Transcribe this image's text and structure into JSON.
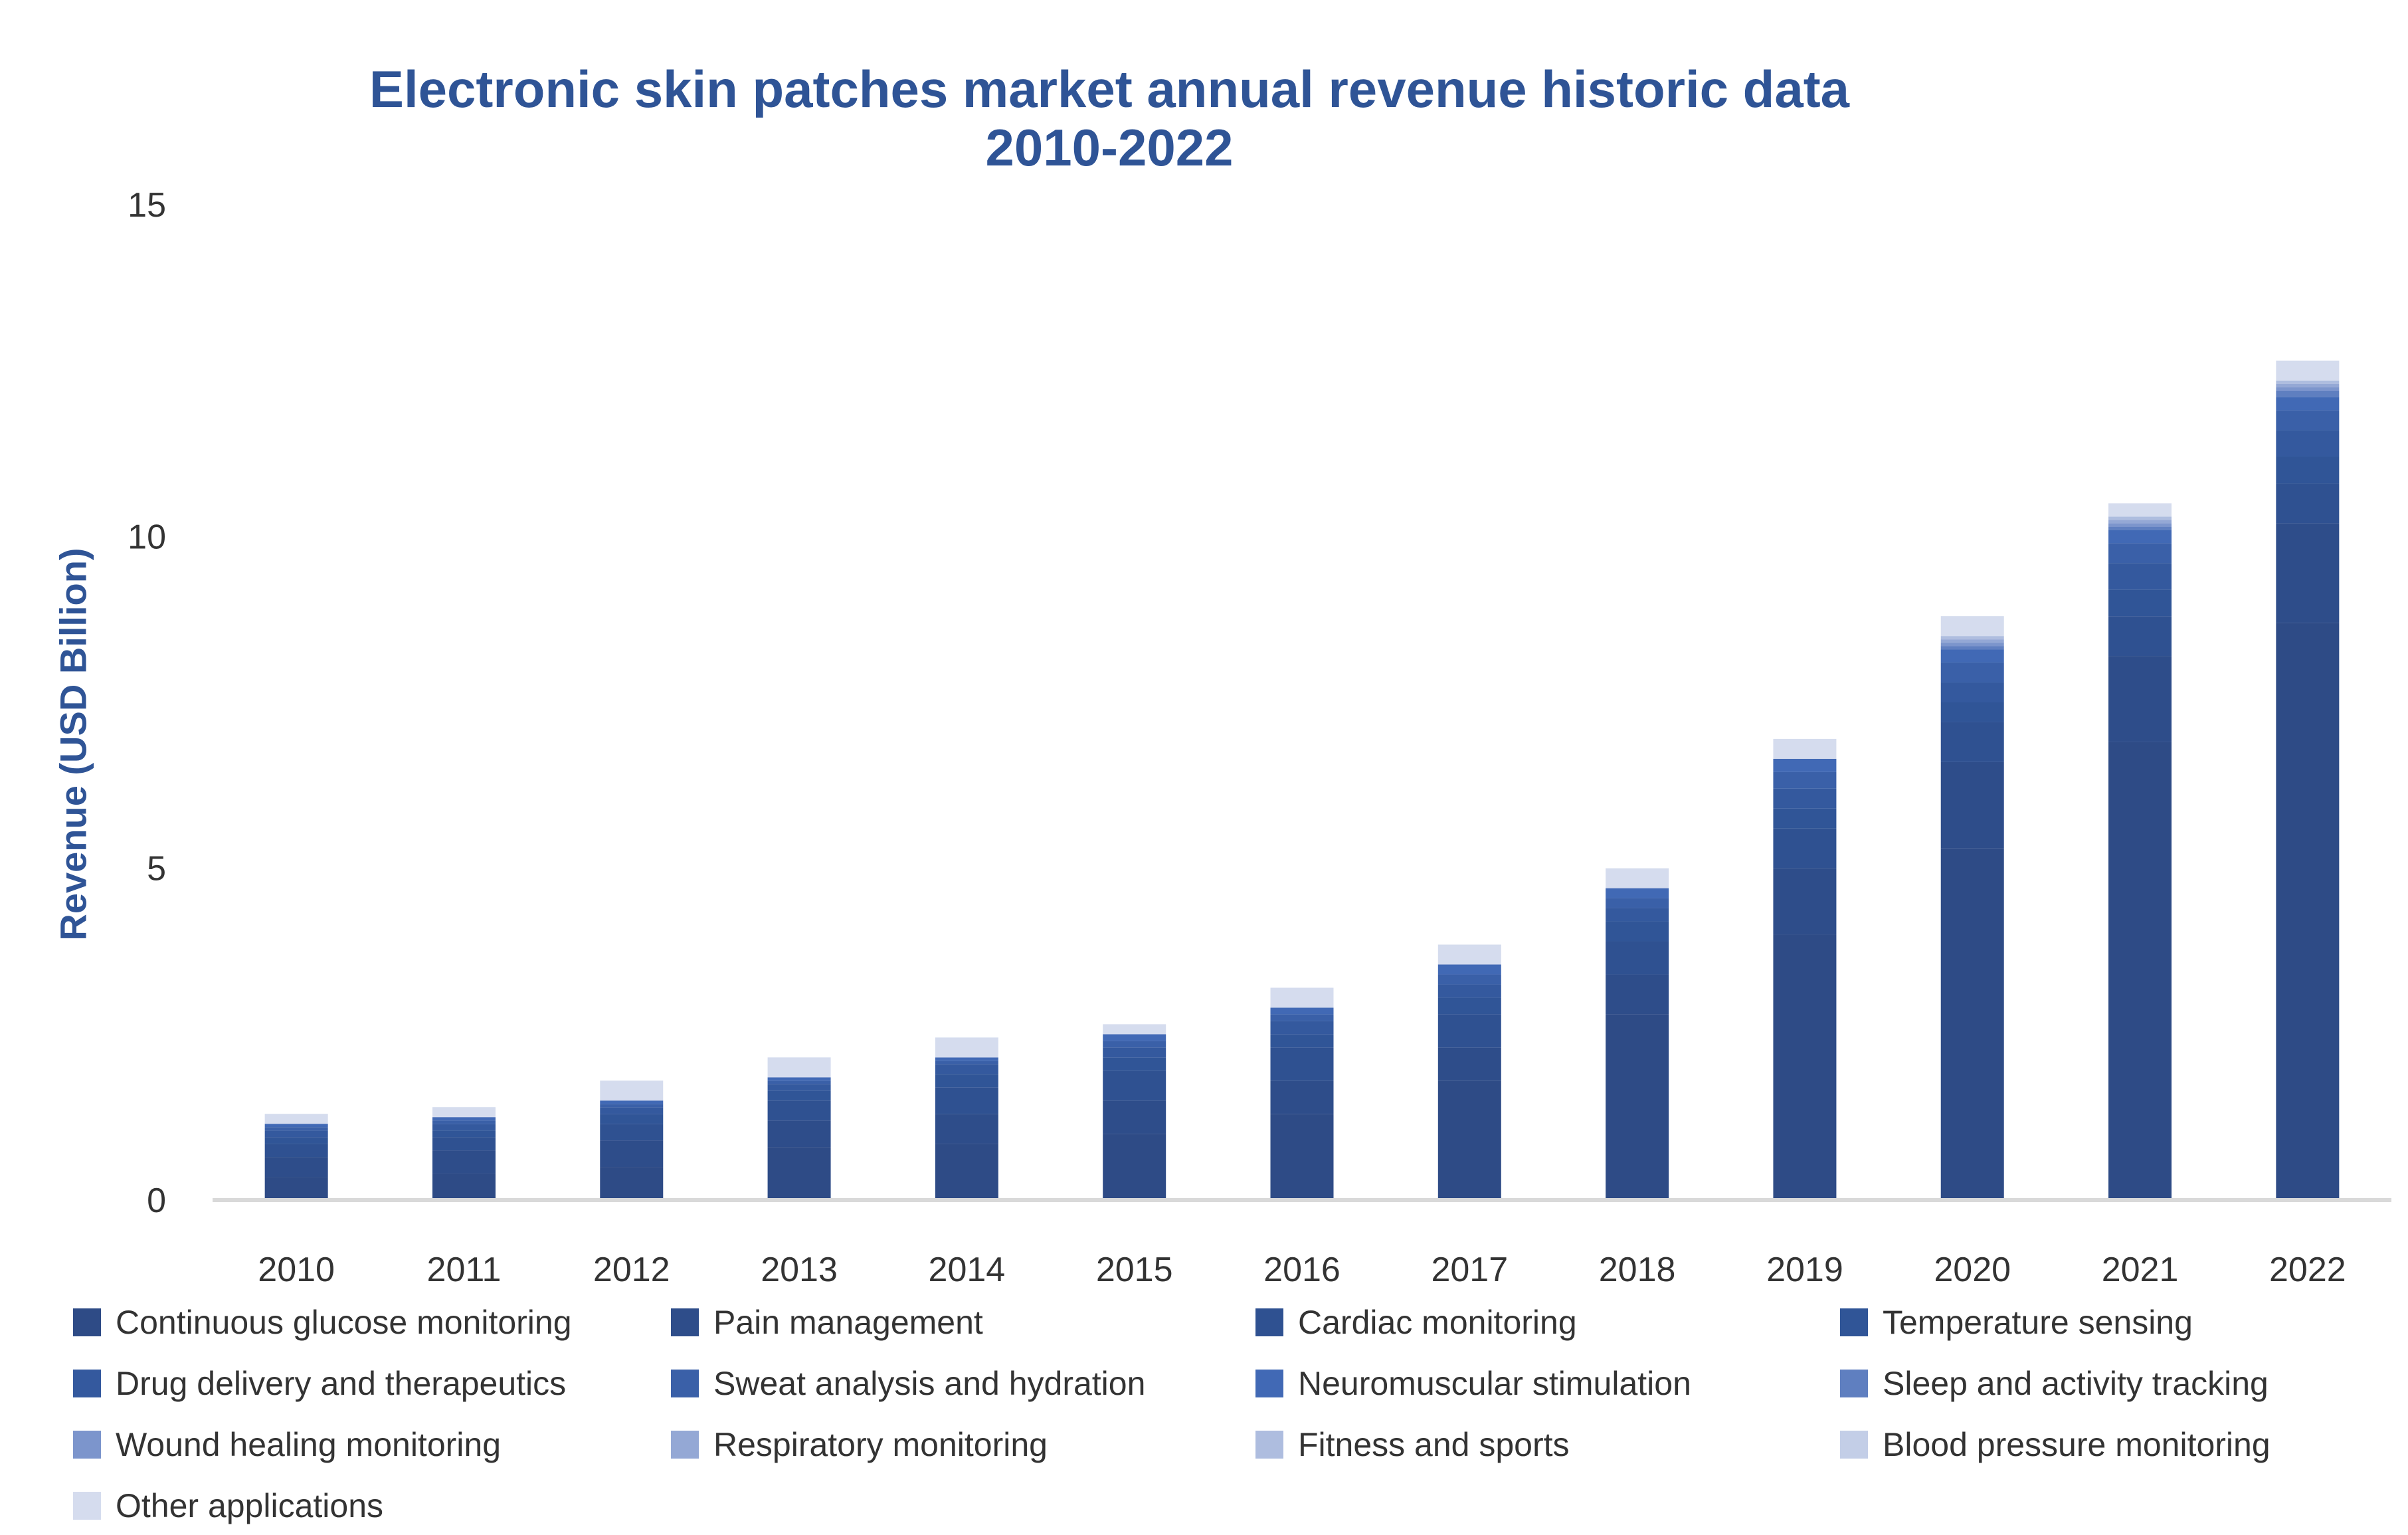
{
  "chart_data": {
    "type": "bar",
    "stacked": true,
    "title": "Electronic skin patches market annual revenue historic data",
    "subtitle": "2010-2022",
    "xlabel": "",
    "ylabel": "Revenue (USD Billion)",
    "ylim": [
      0,
      15
    ],
    "yticks": [
      0,
      5,
      10,
      15
    ],
    "grid": false,
    "legend_position": "bottom",
    "categories": [
      "2010",
      "2011",
      "2012",
      "2013",
      "2014",
      "2015",
      "2016",
      "2017",
      "2018",
      "2019",
      "2020",
      "2021",
      "2022"
    ],
    "series": [
      {
        "name": "Continuous glucose monitoring",
        "color": "#2e4b86",
        "values": [
          0.35,
          0.4,
          0.5,
          0.8,
          0.85,
          1.0,
          1.3,
          1.8,
          2.8,
          4.0,
          5.3,
          6.9,
          8.7
        ]
      },
      {
        "name": "Pain management",
        "color": "#2e4d8a",
        "values": [
          0.3,
          0.35,
          0.4,
          0.4,
          0.45,
          0.5,
          0.5,
          0.5,
          0.6,
          1.0,
          1.3,
          1.3,
          1.5
        ]
      },
      {
        "name": "Cardiac monitoring",
        "color": "#2f5191",
        "values": [
          0.2,
          0.2,
          0.25,
          0.3,
          0.4,
          0.45,
          0.5,
          0.5,
          0.5,
          0.6,
          0.6,
          0.6,
          0.6
        ]
      },
      {
        "name": "Temperature sensing",
        "color": "#305597",
        "values": [
          0.1,
          0.1,
          0.15,
          0.15,
          0.2,
          0.2,
          0.2,
          0.25,
          0.3,
          0.3,
          0.3,
          0.4,
          0.4
        ]
      },
      {
        "name": "Drug delivery and therapeutics",
        "color": "#34599e",
        "values": [
          0.1,
          0.1,
          0.1,
          0.1,
          0.15,
          0.15,
          0.2,
          0.2,
          0.2,
          0.3,
          0.3,
          0.4,
          0.4
        ]
      },
      {
        "name": "Sweat analysis and hydration",
        "color": "#3a60a8",
        "values": [
          0.05,
          0.05,
          0.05,
          0.05,
          0.05,
          0.1,
          0.1,
          0.15,
          0.15,
          0.25,
          0.3,
          0.3,
          0.3
        ]
      },
      {
        "name": "Neuromuscular stimulation",
        "color": "#4169b5",
        "values": [
          0.05,
          0.05,
          0.05,
          0.05,
          0.05,
          0.1,
          0.1,
          0.15,
          0.15,
          0.2,
          0.2,
          0.2,
          0.2
        ]
      },
      {
        "name": "Sleep and activity tracking",
        "color": "#5f7fc0",
        "values": [
          0,
          0,
          0,
          0,
          0,
          0,
          0,
          0,
          0,
          0,
          0.05,
          0.05,
          0.1
        ]
      },
      {
        "name": "Wound healing monitoring",
        "color": "#7c95cc",
        "values": [
          0,
          0,
          0,
          0,
          0,
          0,
          0,
          0,
          0,
          0,
          0.05,
          0.05,
          0.05
        ]
      },
      {
        "name": "Respiratory monitoring",
        "color": "#94a8d5",
        "values": [
          0,
          0,
          0,
          0,
          0,
          0,
          0,
          0,
          0,
          0,
          0.05,
          0.05,
          0.05
        ]
      },
      {
        "name": "Fitness and sports",
        "color": "#aebddf",
        "values": [
          0,
          0,
          0,
          0,
          0,
          0,
          0,
          0,
          0,
          0,
          0.05,
          0.05,
          0.05
        ]
      },
      {
        "name": "Blood pressure monitoring",
        "color": "#c3cee7",
        "values": [
          0,
          0,
          0,
          0,
          0,
          0,
          0,
          0,
          0,
          0,
          0,
          0,
          0
        ]
      },
      {
        "name": "Other applications",
        "color": "#d5dcee",
        "values": [
          0.15,
          0.15,
          0.3,
          0.3,
          0.3,
          0.15,
          0.3,
          0.3,
          0.3,
          0.3,
          0.3,
          0.2,
          0.3
        ]
      }
    ]
  }
}
